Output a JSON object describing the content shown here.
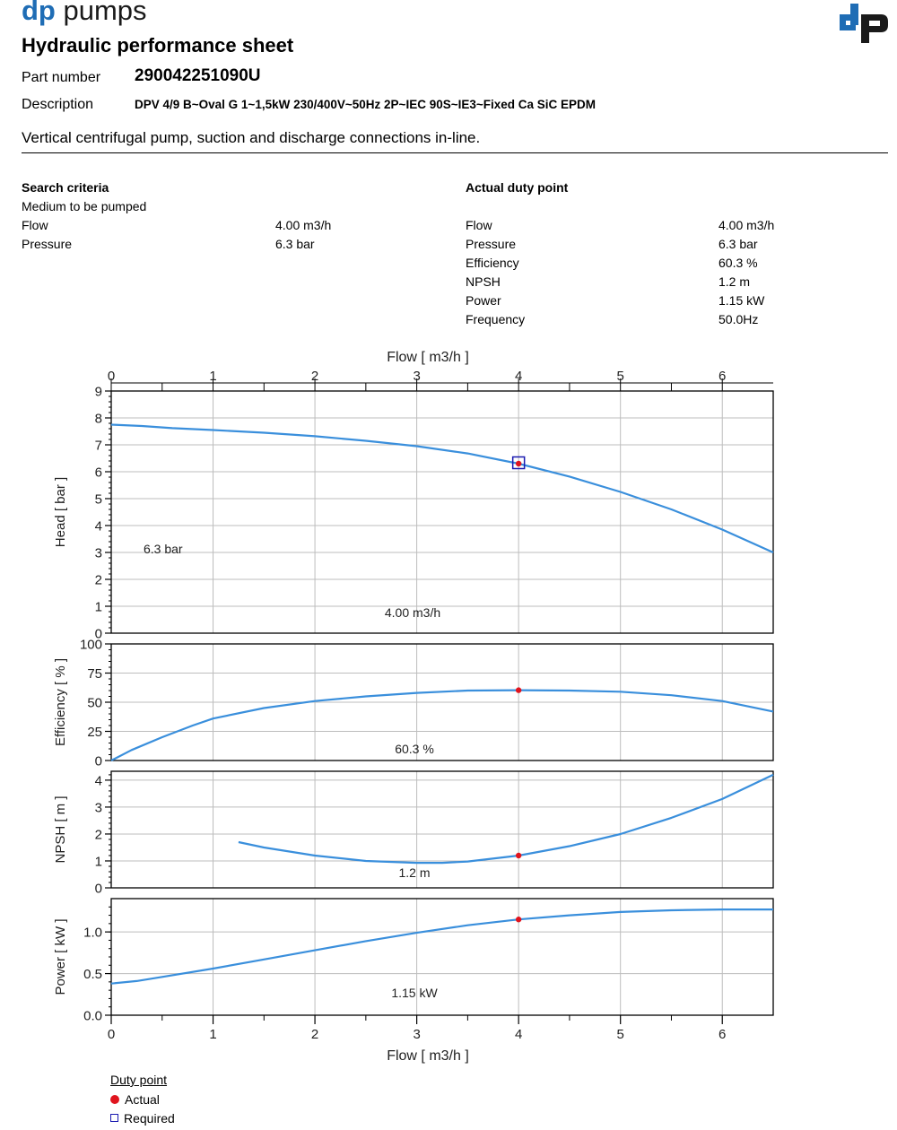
{
  "header": {
    "brand_dp": "dp",
    "brand_pumps": "pumps",
    "title": "Hydraulic performance sheet",
    "part_number_label": "Part number",
    "part_number": "290042251090U",
    "description_label": "Description",
    "description": "DPV 4/9 B~Oval G 1~1,5kW 230/400V~50Hz 2P~IEC 90S~IE3~Fixed Ca SiC EPDM",
    "tagline": "Vertical centrifugal pump, suction and discharge connections in-line."
  },
  "search_criteria": {
    "title": "Search criteria",
    "medium_label": "Medium to be pumped",
    "rows": [
      {
        "label": "Flow",
        "value": "4.00 m3/h"
      },
      {
        "label": "Pressure",
        "value": "6.3 bar"
      }
    ]
  },
  "duty_point": {
    "title": "Actual duty point",
    "rows": [
      {
        "label": "Flow",
        "value": "4.00 m3/h"
      },
      {
        "label": "Pressure",
        "value": "6.3 bar"
      },
      {
        "label": "Efficiency",
        "value": "60.3 %"
      },
      {
        "label": "NPSH",
        "value": "1.2 m"
      },
      {
        "label": "Power",
        "value": "1.15 kW"
      },
      {
        "label": "Frequency",
        "value": "50.0Hz"
      }
    ]
  },
  "legend": {
    "title": "Duty point",
    "actual": "Actual",
    "required": "Required"
  },
  "colors": {
    "brand": "#1f6db5",
    "curve": "#3a8fdc",
    "actual": "#e0141e",
    "required": "#1a1ab0"
  },
  "chart_data": {
    "type": "line",
    "xlabel": "Flow [ m3/h ]",
    "xlim": [
      0,
      6.5
    ],
    "xticks": [
      0,
      1,
      2,
      3,
      4,
      5,
      6
    ],
    "duty_x": 4.0,
    "panels": [
      {
        "name": "head",
        "ylabel": "Head [ bar ]",
        "ylim": [
          0,
          9
        ],
        "yticks": [
          0,
          1,
          2,
          3,
          4,
          5,
          6,
          7,
          8,
          9
        ],
        "annotation": "6.3 bar",
        "x_annotation": "4.00 m3/h",
        "duty_y": 6.3,
        "required_marker": true,
        "x": [
          0,
          0.3,
          0.6,
          1.0,
          1.5,
          2.0,
          2.5,
          3.0,
          3.5,
          4.0,
          4.5,
          5.0,
          5.5,
          6.0,
          6.5
        ],
        "y": [
          7.75,
          7.7,
          7.62,
          7.55,
          7.45,
          7.32,
          7.15,
          6.95,
          6.68,
          6.3,
          5.82,
          5.25,
          4.6,
          3.85,
          3.0
        ]
      },
      {
        "name": "efficiency",
        "ylabel": "Efficiency [ % ]",
        "ylim": [
          0,
          100
        ],
        "yticks": [
          0,
          25,
          50,
          75,
          100
        ],
        "annotation": "60.3 %",
        "duty_y": 60.3,
        "x": [
          0,
          0.2,
          0.5,
          0.8,
          1.0,
          1.5,
          2.0,
          2.5,
          3.0,
          3.5,
          4.0,
          4.5,
          5.0,
          5.5,
          6.0,
          6.5
        ],
        "y": [
          0,
          9,
          20,
          30,
          36,
          45,
          51,
          55,
          58,
          60,
          60.3,
          60,
          59,
          56,
          51,
          42
        ]
      },
      {
        "name": "npsh",
        "ylabel": "NPSH [ m ]",
        "ylim": [
          0,
          4.33
        ],
        "yticks": [
          0,
          1,
          2,
          3,
          4
        ],
        "annotation": "1.2 m",
        "duty_y": 1.2,
        "x": [
          1.25,
          1.5,
          2.0,
          2.5,
          3.0,
          3.25,
          3.5,
          4.0,
          4.5,
          5.0,
          5.5,
          6.0,
          6.5
        ],
        "y": [
          1.7,
          1.5,
          1.2,
          1.0,
          0.93,
          0.93,
          0.98,
          1.2,
          1.55,
          2.0,
          2.6,
          3.3,
          4.2
        ]
      },
      {
        "name": "power",
        "ylabel": "Power [ kW ]",
        "ylim": [
          0,
          1.4
        ],
        "yticks": [
          0.0,
          0.5,
          1.0
        ],
        "tick_format": "0.0",
        "annotation": "1.15 kW",
        "duty_y": 1.15,
        "x": [
          0,
          0.25,
          0.5,
          1.0,
          1.5,
          2.0,
          2.5,
          3.0,
          3.5,
          4.0,
          4.5,
          5.0,
          5.5,
          6.0,
          6.5
        ],
        "y": [
          0.38,
          0.41,
          0.46,
          0.56,
          0.67,
          0.78,
          0.89,
          0.99,
          1.08,
          1.15,
          1.2,
          1.24,
          1.26,
          1.27,
          1.27
        ]
      }
    ]
  }
}
